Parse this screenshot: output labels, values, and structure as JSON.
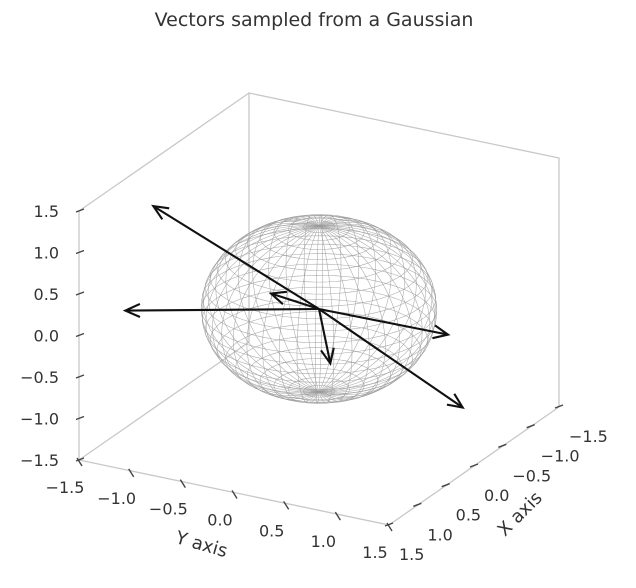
{
  "chart_data": {
    "type": "3d-vectors",
    "title": "Vectors sampled from a Gaussian",
    "xlabel": "X axis",
    "ylabel": "Y axis",
    "zlabel": "",
    "xlim": [
      -1.5,
      1.5
    ],
    "ylim": [
      -1.5,
      1.5
    ],
    "zlim": [
      -1.5,
      1.5
    ],
    "xticks": [
      "−1.5",
      "−1.0",
      "−0.5",
      "0.0",
      "0.5",
      "1.0",
      "1.5"
    ],
    "yticks": [
      "−1.5",
      "−1.0",
      "−0.5",
      "0.0",
      "0.5",
      "1.0",
      "1.5"
    ],
    "zticks": [
      "−1.5",
      "−1.0",
      "−0.5",
      "0.0",
      "0.5",
      "1.0",
      "1.5"
    ],
    "sphere": {
      "type": "unit-sphere-wireframe",
      "radius": 1,
      "color": "#9a9a9a"
    },
    "origin": [
      0,
      0,
      0
    ],
    "vectors": [
      {
        "u": -1.1,
        "v": -1.0,
        "w": 1.5
      },
      {
        "u": -0.5,
        "v": -1.6,
        "w": -0.2
      },
      {
        "u": -0.3,
        "v": -0.3,
        "w": 0.25
      },
      {
        "u": 1.0,
        "v": 0.7,
        "w": -0.6
      },
      {
        "u": -0.2,
        "v": 1.5,
        "w": -0.7
      },
      {
        "u": 0.2,
        "v": 0.0,
        "w": -0.75
      }
    ],
    "grid": false
  }
}
